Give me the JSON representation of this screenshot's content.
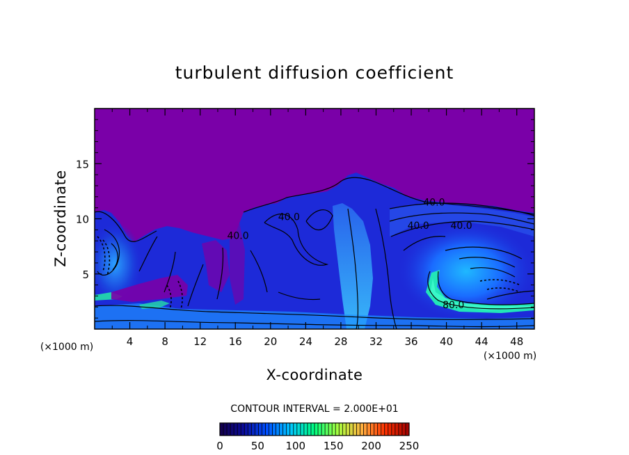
{
  "chart_data": {
    "type": "heatmap",
    "title": "turbulent diffusion coefficient",
    "xlabel": "X-coordinate",
    "ylabel": "Z-coordinate",
    "x_unit": "(×1000 m)",
    "y_unit": "(×1000 m)",
    "xlim": [
      0,
      50
    ],
    "ylim": [
      0,
      20
    ],
    "x_ticks": [
      4,
      8,
      12,
      16,
      20,
      24,
      28,
      32,
      36,
      40,
      44,
      48
    ],
    "y_ticks": [
      5,
      10,
      15
    ],
    "contour_interval_text": "CONTOUR INTERVAL = 2.000E+01",
    "contour_labels": [
      {
        "text": "40.0",
        "x": 38.6,
        "z": 11.5
      },
      {
        "text": "40.0",
        "x": 36.8,
        "z": 9.4
      },
      {
        "text": "40.0",
        "x": 41.7,
        "z": 9.4
      },
      {
        "text": "40.0",
        "x": 22.1,
        "z": 10.2
      },
      {
        "text": "40.0",
        "x": 16.3,
        "z": 8.5
      },
      {
        "text": "80.0",
        "x": 40.8,
        "z": 2.2
      }
    ],
    "colorbar": {
      "min": 0,
      "max": 250,
      "ticks": [
        0,
        50,
        100,
        150,
        200,
        250
      ],
      "colormap": [
        "#14004a",
        "#0a0a9a",
        "#0050ff",
        "#00c8ff",
        "#00ff80",
        "#aaff40",
        "#ffb040",
        "#ff3000",
        "#a00000"
      ]
    },
    "background_color": "#7a00a8"
  }
}
